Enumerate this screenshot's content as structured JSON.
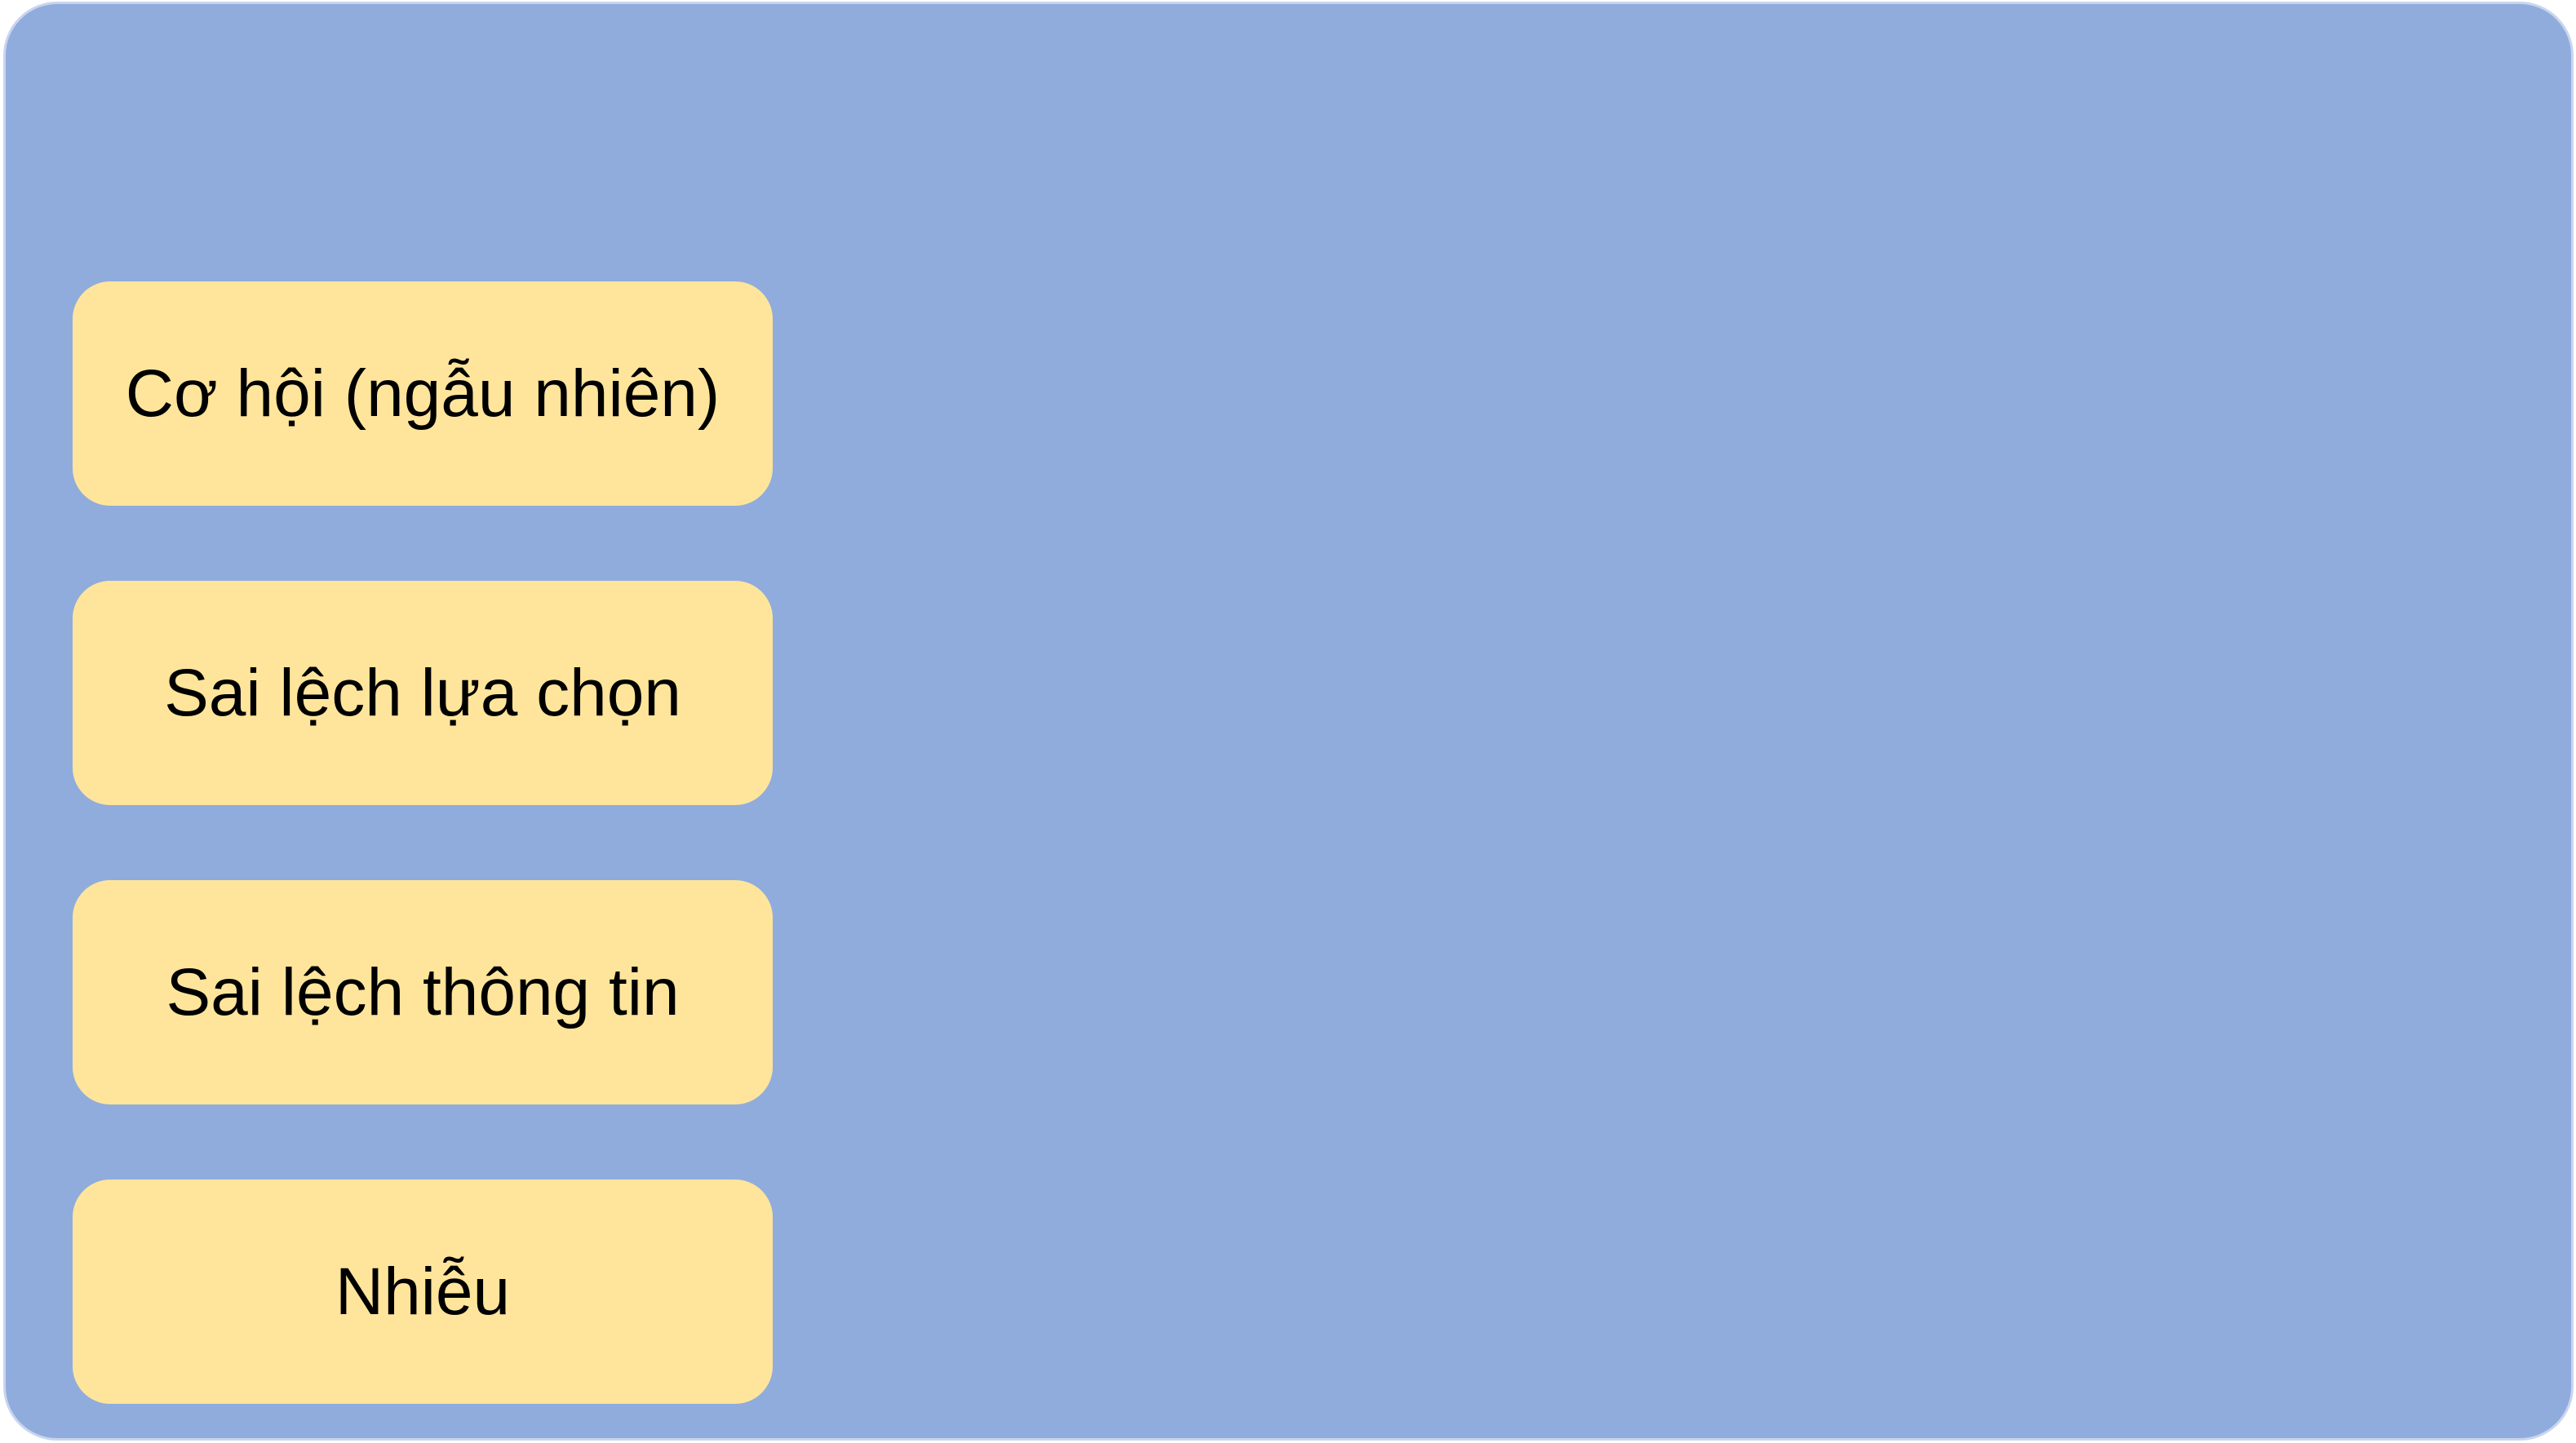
{
  "colors": {
    "panel_fill": "#90acdd",
    "box_fill": "#fee59b",
    "text": "#000000"
  },
  "boxes": [
    {
      "label": "Cơ hội (ngẫu nhiên)"
    },
    {
      "label": "Sai lệch lựa chọn"
    },
    {
      "label": "Sai lệch thông tin"
    },
    {
      "label": "Nhiễu"
    }
  ]
}
